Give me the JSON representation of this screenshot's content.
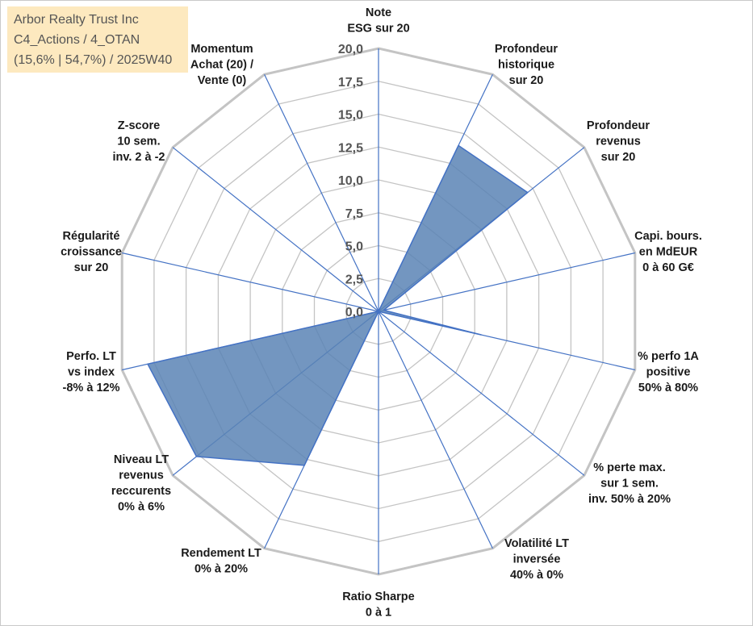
{
  "header": {
    "company": "Arbor Realty Trust Inc",
    "category": "C4_Actions / 4_OTAN",
    "stats": "(15,6% | 54,7%) / 2025W40"
  },
  "chart_data": {
    "type": "radar",
    "title": "Arbor Realty Trust Inc",
    "rmin": 0,
    "rmax": 20,
    "tick_step": 2.5,
    "tick_labels": [
      "0,0",
      "2,5",
      "5,0",
      "7,5",
      "10,0",
      "12,5",
      "15,0",
      "17,5",
      "20,0"
    ],
    "axes": [
      {
        "label": [
          "Note",
          "ESG sur 20"
        ],
        "value": 0
      },
      {
        "label": [
          "Profondeur",
          "historique",
          "sur 20"
        ],
        "value": 14
      },
      {
        "label": [
          "Profondeur",
          "revenus",
          "sur 20"
        ],
        "value": 14.5
      },
      {
        "label": [
          "Capi. bours.",
          "en MdEUR",
          "0 à 60 G€"
        ],
        "value": 0.4
      },
      {
        "label": [
          "% perfo 1A",
          "positive",
          "50% à 80%"
        ],
        "value": 8
      },
      {
        "label": [
          "% perte max.",
          "sur 1 sem.",
          "inv. 50% à 20%"
        ],
        "value": 0
      },
      {
        "label": [
          "Volatilité LT",
          "inversée",
          "40% à 0%"
        ],
        "value": 0
      },
      {
        "label": [
          "Ratio Sharpe",
          "0 à 1"
        ],
        "value": 0
      },
      {
        "label": [
          "Rendement LT",
          "0% à 20%"
        ],
        "value": 13
      },
      {
        "label": [
          "Niveau LT",
          "revenus",
          "reccurents",
          "0% à 6%"
        ],
        "value": 17.7
      },
      {
        "label": [
          "Perfo. LT",
          "vs index",
          "-8% à 12%"
        ],
        "value": 18
      },
      {
        "label": [
          "Régularité",
          "croissance",
          "sur 20"
        ],
        "value": 0
      },
      {
        "label": [
          "Z-score",
          "10 sem.",
          "inv. 2 à -2"
        ],
        "value": 0
      },
      {
        "label": [
          "Momentum",
          "Achat (20) /",
          "Vente (0)"
        ],
        "value": 0
      }
    ],
    "series": [
      {
        "name": "Arbor Realty Trust Inc",
        "fill": "#5b84b5",
        "stroke": "#4472c4"
      }
    ],
    "colors": {
      "grid": "#c4c4c4",
      "spoke": "#4472c4",
      "tick": "#555555"
    }
  }
}
